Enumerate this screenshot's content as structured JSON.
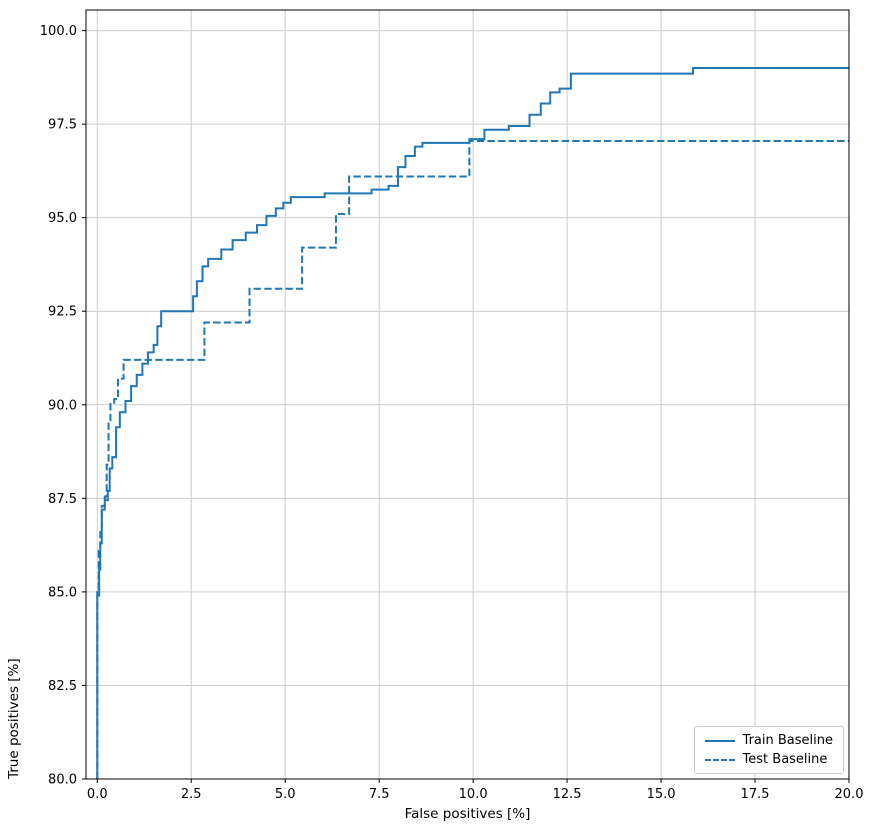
{
  "chart_data": {
    "type": "line",
    "step": "post",
    "title": "",
    "xlabel": "False positives [%]",
    "ylabel": "True positives [%]",
    "xlim": [
      -0.3,
      20
    ],
    "ylim": [
      80,
      100.55
    ],
    "grid": true,
    "legend_position": "lower right",
    "accent_color": "#1f77b4",
    "xticks": [
      0.0,
      2.5,
      5.0,
      7.5,
      10.0,
      12.5,
      15.0,
      17.5,
      20.0
    ],
    "xtick_labels": [
      "0.0",
      "2.5",
      "5.0",
      "7.5",
      "10.0",
      "12.5",
      "15.0",
      "17.5",
      "20.0"
    ],
    "yticks": [
      80.0,
      82.5,
      85.0,
      87.5,
      90.0,
      92.5,
      95.0,
      97.5,
      100.0
    ],
    "ytick_labels": [
      "80.0",
      "82.5",
      "85.0",
      "87.5",
      "90.0",
      "92.5",
      "95.0",
      "97.5",
      "100.0"
    ],
    "series": [
      {
        "name": "Train Baseline",
        "style": "solid",
        "color": "#1f77b4",
        "points": [
          [
            0.0,
            80.0
          ],
          [
            0.0,
            84.9
          ],
          [
            0.05,
            85.6
          ],
          [
            0.08,
            86.3
          ],
          [
            0.12,
            87.2
          ],
          [
            0.2,
            87.45
          ],
          [
            0.28,
            87.7
          ],
          [
            0.33,
            88.3
          ],
          [
            0.4,
            88.6
          ],
          [
            0.5,
            89.4
          ],
          [
            0.6,
            89.8
          ],
          [
            0.75,
            90.1
          ],
          [
            0.9,
            90.5
          ],
          [
            1.05,
            90.8
          ],
          [
            1.2,
            91.1
          ],
          [
            1.35,
            91.4
          ],
          [
            1.5,
            91.6
          ],
          [
            1.6,
            92.1
          ],
          [
            1.7,
            92.5
          ],
          [
            2.55,
            92.9
          ],
          [
            2.65,
            93.3
          ],
          [
            2.8,
            93.7
          ],
          [
            2.95,
            93.9
          ],
          [
            3.3,
            94.15
          ],
          [
            3.6,
            94.4
          ],
          [
            3.95,
            94.6
          ],
          [
            4.25,
            94.8
          ],
          [
            4.5,
            95.05
          ],
          [
            4.75,
            95.25
          ],
          [
            4.95,
            95.4
          ],
          [
            5.15,
            95.55
          ],
          [
            6.05,
            95.65
          ],
          [
            7.3,
            95.75
          ],
          [
            7.75,
            95.85
          ],
          [
            8.0,
            96.35
          ],
          [
            8.2,
            96.65
          ],
          [
            8.45,
            96.9
          ],
          [
            8.65,
            97.0
          ],
          [
            9.9,
            97.1
          ],
          [
            10.3,
            97.35
          ],
          [
            10.95,
            97.45
          ],
          [
            11.5,
            97.75
          ],
          [
            11.8,
            98.05
          ],
          [
            12.05,
            98.35
          ],
          [
            12.3,
            98.45
          ],
          [
            12.6,
            98.85
          ],
          [
            15.85,
            99.0
          ],
          [
            20.0,
            99.0
          ]
        ]
      },
      {
        "name": "Test Baseline",
        "style": "dashed",
        "color": "#1f77b4",
        "points": [
          [
            0.0,
            80.0
          ],
          [
            0.0,
            85.0
          ],
          [
            0.04,
            86.1
          ],
          [
            0.08,
            86.6
          ],
          [
            0.12,
            87.3
          ],
          [
            0.2,
            87.55
          ],
          [
            0.25,
            88.4
          ],
          [
            0.3,
            89.5
          ],
          [
            0.35,
            90.05
          ],
          [
            0.45,
            90.15
          ],
          [
            0.55,
            90.7
          ],
          [
            0.7,
            91.2
          ],
          [
            2.85,
            92.2
          ],
          [
            4.05,
            93.1
          ],
          [
            5.45,
            94.2
          ],
          [
            6.35,
            95.1
          ],
          [
            6.7,
            96.1
          ],
          [
            9.9,
            97.05
          ],
          [
            20.0,
            97.05
          ]
        ]
      }
    ]
  }
}
